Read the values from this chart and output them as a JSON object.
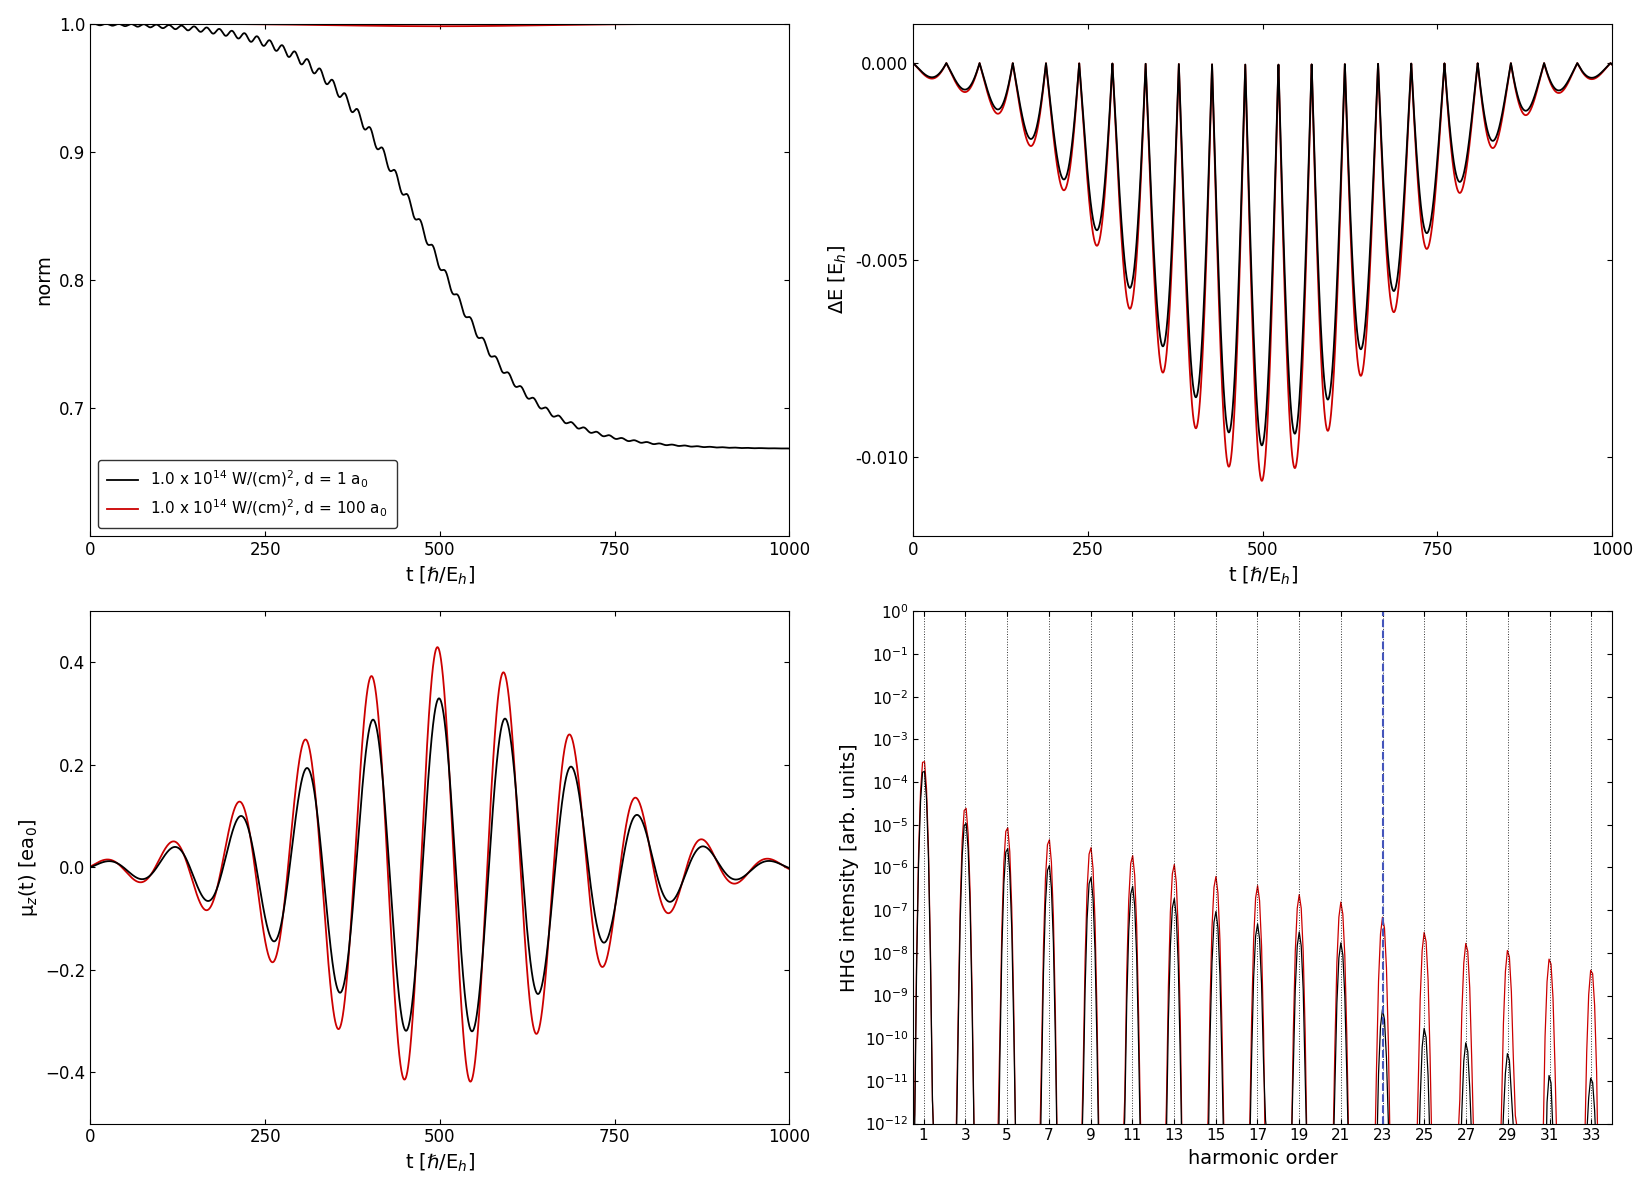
{
  "fig_width": 16.5,
  "fig_height": 11.91,
  "bg_color": "#ffffff",
  "line_black": "#000000",
  "line_red": "#cc0000",
  "line_blue_dashed": "#4455bb",
  "panel_tl": {
    "xlabel": "t [ℏ/E$_h$]",
    "ylabel": "norm",
    "xlim": [
      0,
      1000
    ],
    "ylim": [
      0.6,
      1.0
    ],
    "xticks": [
      0,
      250,
      500,
      750,
      1000
    ],
    "yticks": [
      0.7,
      0.8,
      0.9,
      1.0
    ],
    "legend": [
      "1.0 x 10$^{14}$ W/(cm)$^2$, d = 1 a$_0$",
      "1.0 x 10$^{14}$ W/(cm)$^2$, d = 100 a$_0$"
    ]
  },
  "panel_tr": {
    "xlabel": "t [ℏ/E$_h$]",
    "ylabel": "ΔE [E$_h$]",
    "xlim": [
      0,
      1000
    ],
    "ylim": [
      -0.012,
      0.001
    ],
    "xticks": [
      0,
      250,
      500,
      750,
      1000
    ],
    "yticks": [
      0.0,
      -0.005,
      -0.01
    ]
  },
  "panel_bl": {
    "xlabel": "t [ℏ/E$_h$]",
    "ylabel": "μ$_z$(t) [ea$_0$]",
    "xlim": [
      0,
      1000
    ],
    "ylim": [
      -0.5,
      0.5
    ],
    "xticks": [
      0,
      250,
      500,
      750,
      1000
    ],
    "yticks": [
      -0.4,
      -0.2,
      0.0,
      0.2,
      0.4
    ]
  },
  "panel_br": {
    "xlabel": "harmonic order",
    "ylabel": "HHG intensity [arb. units]",
    "xlim": [
      0.5,
      34
    ],
    "ylim_log": [
      -12,
      0
    ],
    "harmonic_ticks": [
      1,
      3,
      5,
      7,
      9,
      11,
      13,
      15,
      17,
      19,
      21,
      23,
      25,
      27,
      29,
      31,
      33
    ],
    "vlines_dotted": [
      1,
      3,
      5,
      7,
      9,
      11,
      13,
      15,
      17,
      19,
      21,
      23,
      25,
      27,
      29,
      31,
      33
    ],
    "vline_dashed_blue": 23
  }
}
